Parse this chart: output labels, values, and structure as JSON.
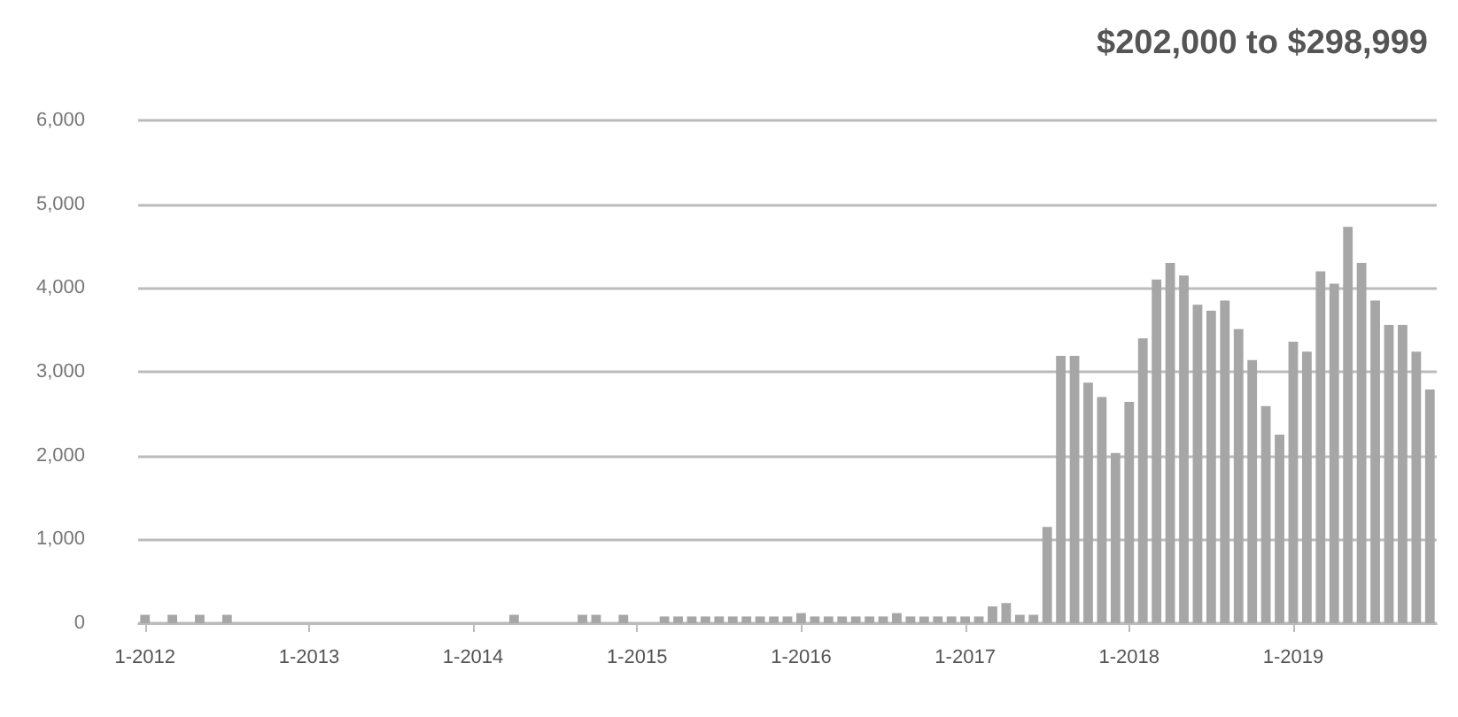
{
  "chart_data": {
    "type": "bar",
    "title": "$202,000 to $298,999",
    "categories": [
      "1-2012",
      null,
      null,
      null,
      null,
      null,
      null,
      null,
      null,
      null,
      null,
      null,
      "1-2013",
      null,
      null,
      null,
      null,
      null,
      null,
      null,
      null,
      null,
      null,
      null,
      "1-2014",
      null,
      null,
      null,
      null,
      null,
      null,
      null,
      null,
      null,
      null,
      null,
      "1-2015",
      null,
      null,
      null,
      null,
      null,
      null,
      null,
      null,
      null,
      null,
      null,
      "1-2016",
      null,
      null,
      null,
      null,
      null,
      null,
      null,
      null,
      null,
      null,
      null,
      "1-2017",
      null,
      null,
      null,
      null,
      null,
      null,
      null,
      null,
      null,
      null,
      null,
      "1-2018",
      null,
      null,
      null,
      null,
      null,
      null,
      null,
      null,
      null,
      null,
      null,
      "1-2019",
      null,
      null,
      null,
      null,
      null,
      null,
      null,
      null,
      null,
      null
    ],
    "values": [
      100,
      null,
      100,
      null,
      100,
      null,
      100,
      null,
      null,
      null,
      null,
      null,
      null,
      null,
      null,
      null,
      null,
      null,
      null,
      null,
      null,
      null,
      null,
      null,
      null,
      null,
      null,
      100,
      null,
      null,
      null,
      null,
      100,
      100,
      null,
      100,
      null,
      null,
      80,
      80,
      80,
      80,
      80,
      80,
      80,
      80,
      80,
      80,
      120,
      80,
      80,
      80,
      80,
      80,
      80,
      120,
      80,
      80,
      80,
      80,
      80,
      80,
      200,
      240,
      100,
      100,
      1150,
      3190,
      3190,
      2870,
      2700,
      2030,
      2640,
      3400,
      4100,
      4300,
      4150,
      3800,
      3730,
      3850,
      3510,
      3140,
      2590,
      2250,
      3360,
      3240,
      4200,
      4050,
      4730,
      4300,
      3850,
      3560,
      3560,
      3240,
      2790
    ],
    "color": "#a6a6a6",
    "ylim": [
      0,
      6000
    ],
    "yticks": [
      0,
      {
        "value": 1000,
        "label": "1,000"
      },
      {
        "value": 2000,
        "label": "2,000"
      },
      {
        "value": 3000,
        "label": "3,000"
      },
      {
        "value": 4000,
        "label": "4,000"
      },
      {
        "value": 5000,
        "label": "5,000"
      },
      {
        "value": 6000,
        "label": "6,000"
      }
    ],
    "grid": "y"
  }
}
